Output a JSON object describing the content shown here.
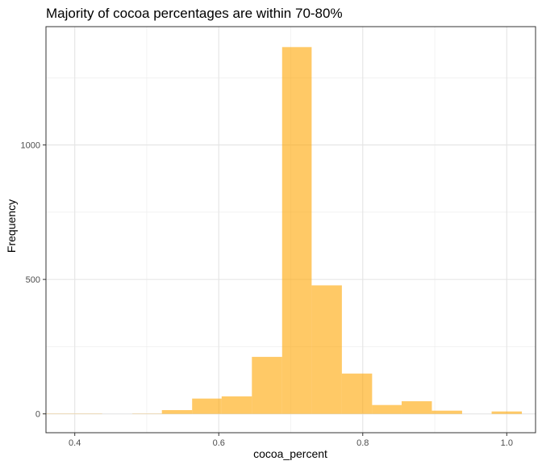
{
  "chart_data": {
    "type": "bar",
    "title": "Majority of cocoa percentages are within 70-80%",
    "xlabel": "cocoa_percent",
    "ylabel": "Frequency",
    "xlim": [
      0.36,
      1.04
    ],
    "ylim": [
      -70,
      1440
    ],
    "x_ticks": [
      0.4,
      0.6,
      0.8,
      1.0
    ],
    "x_tick_labels": [
      "0.4",
      "0.6",
      "0.8",
      "1.0"
    ],
    "y_ticks": [
      0,
      500,
      1000
    ],
    "y_tick_labels": [
      "0",
      "500",
      "1000"
    ],
    "grid": true,
    "bar_color": "#ffa500",
    "bar_opacity": 0.6,
    "bins": [
      {
        "x0": 0.355,
        "x1": 0.397,
        "value": 1
      },
      {
        "x0": 0.397,
        "x1": 0.438,
        "value": 1
      },
      {
        "x0": 0.438,
        "x1": 0.48,
        "value": 0
      },
      {
        "x0": 0.48,
        "x1": 0.521,
        "value": 1
      },
      {
        "x0": 0.521,
        "x1": 0.563,
        "value": 14
      },
      {
        "x0": 0.563,
        "x1": 0.604,
        "value": 57
      },
      {
        "x0": 0.604,
        "x1": 0.646,
        "value": 65
      },
      {
        "x0": 0.646,
        "x1": 0.688,
        "value": 212
      },
      {
        "x0": 0.688,
        "x1": 0.729,
        "value": 1364
      },
      {
        "x0": 0.729,
        "x1": 0.771,
        "value": 478
      },
      {
        "x0": 0.771,
        "x1": 0.813,
        "value": 150
      },
      {
        "x0": 0.813,
        "x1": 0.854,
        "value": 33
      },
      {
        "x0": 0.854,
        "x1": 0.896,
        "value": 47
      },
      {
        "x0": 0.896,
        "x1": 0.938,
        "value": 12
      },
      {
        "x0": 0.938,
        "x1": 0.979,
        "value": 0
      },
      {
        "x0": 0.979,
        "x1": 1.021,
        "value": 9
      }
    ]
  }
}
